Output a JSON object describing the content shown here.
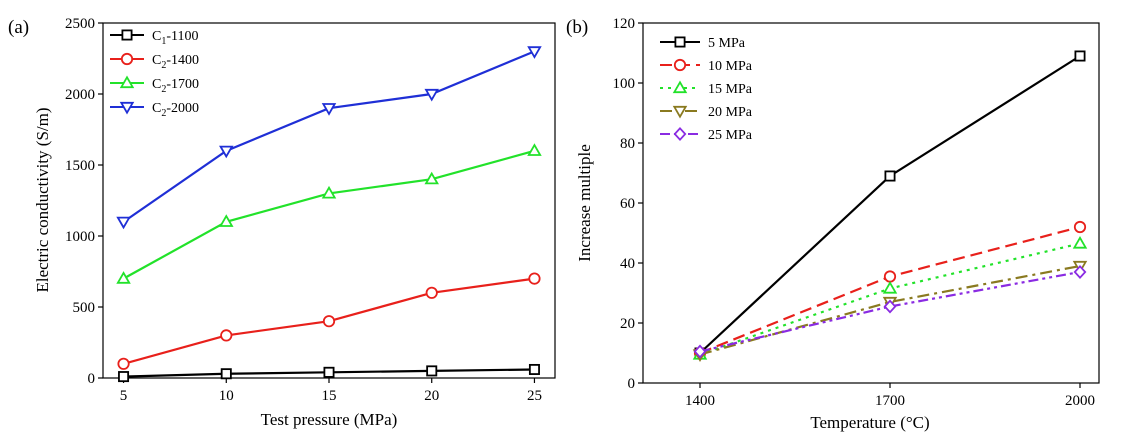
{
  "chart_data": [
    {
      "panel": "(a)",
      "type": "line",
      "xlabel": "Test pressure (MPa)",
      "ylabel": "Electric conductivity (S/m)",
      "x": [
        5,
        10,
        15,
        20,
        25
      ],
      "xticks": [
        5,
        10,
        15,
        20,
        25
      ],
      "xlim": [
        4,
        26
      ],
      "yticks": [
        0,
        500,
        1000,
        1500,
        2000,
        2500
      ],
      "ylim": [
        0,
        2500
      ],
      "legend_position": "top-left",
      "series": [
        {
          "name": "C1-1100",
          "label_main": "C",
          "label_sub": "1",
          "label_rest": "-1100",
          "color": "#000000",
          "marker": "square",
          "dash": "solid",
          "values": [
            10,
            30,
            40,
            50,
            60
          ]
        },
        {
          "name": "C2-1400",
          "label_main": "C",
          "label_sub": "2",
          "label_rest": "-1400",
          "color": "#e8201b",
          "marker": "circle",
          "dash": "solid",
          "values": [
            100,
            300,
            400,
            600,
            700
          ]
        },
        {
          "name": "C2-1700",
          "label_main": "C",
          "label_sub": "2",
          "label_rest": "-1700",
          "color": "#22e22a",
          "marker": "triangle-up",
          "dash": "solid",
          "values": [
            700,
            1100,
            1300,
            1400,
            1600
          ]
        },
        {
          "name": "C2-2000",
          "label_main": "C",
          "label_sub": "2",
          "label_rest": "-2000",
          "color": "#1f2fd6",
          "marker": "triangle-down",
          "dash": "solid",
          "values": [
            1100,
            1600,
            1900,
            2000,
            2300
          ]
        }
      ]
    },
    {
      "panel": "(b)",
      "type": "line",
      "xlabel": "Temperature (°C)",
      "ylabel": "Increase multiple",
      "x": [
        1400,
        1700,
        2000
      ],
      "xticks": [
        1400,
        1700,
        2000
      ],
      "xlim": [
        1310,
        2030
      ],
      "yticks": [
        0,
        20,
        40,
        60,
        80,
        100,
        120
      ],
      "ylim": [
        0,
        120
      ],
      "legend_position": "top-left",
      "series": [
        {
          "name": "5 MPa",
          "color": "#000000",
          "marker": "square",
          "dash": "solid",
          "values": [
            10,
            69,
            109
          ]
        },
        {
          "name": "10 MPa",
          "color": "#e8201b",
          "marker": "circle",
          "dash": "dashed",
          "values": [
            10,
            35.5,
            52
          ]
        },
        {
          "name": "15 MPa",
          "color": "#22e22a",
          "marker": "triangle-up",
          "dash": "dotted",
          "values": [
            9.5,
            31.5,
            46.5
          ]
        },
        {
          "name": "20 MPa",
          "color": "#8a7a20",
          "marker": "triangle-down",
          "dash": "dashdot",
          "values": [
            9.5,
            27,
            39
          ]
        },
        {
          "name": "25 MPa",
          "color": "#8a2be2",
          "marker": "diamond",
          "dash": "dashdotdot",
          "values": [
            10.5,
            25.5,
            37
          ]
        }
      ]
    }
  ]
}
